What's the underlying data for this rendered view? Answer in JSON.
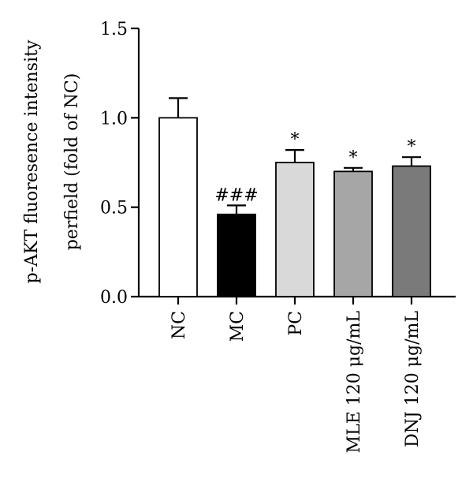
{
  "chart_data": {
    "type": "bar",
    "ylabel_lines": [
      "p-AKT fluoresence intensity",
      "perfield (fold of NC)"
    ],
    "categories": [
      "NC",
      "MC",
      "PC",
      "MLE 120 μg/mL",
      "DNJ 120 μg/mL"
    ],
    "values": [
      1.0,
      0.46,
      0.75,
      0.7,
      0.73
    ],
    "errors": [
      0.11,
      0.05,
      0.07,
      0.02,
      0.05
    ],
    "annotations": [
      "",
      "###",
      "*",
      "*",
      "*"
    ],
    "colors": [
      "#ffffff",
      "#000000",
      "#d9d9d9",
      "#a6a6a6",
      "#7a7a7a"
    ],
    "ylim": [
      0,
      1.5
    ],
    "yticks": [
      0.0,
      0.5,
      1.0,
      1.5
    ],
    "ytick_labels": [
      "0.0",
      "0.5",
      "1.0",
      "1.5"
    ],
    "grid": false
  }
}
